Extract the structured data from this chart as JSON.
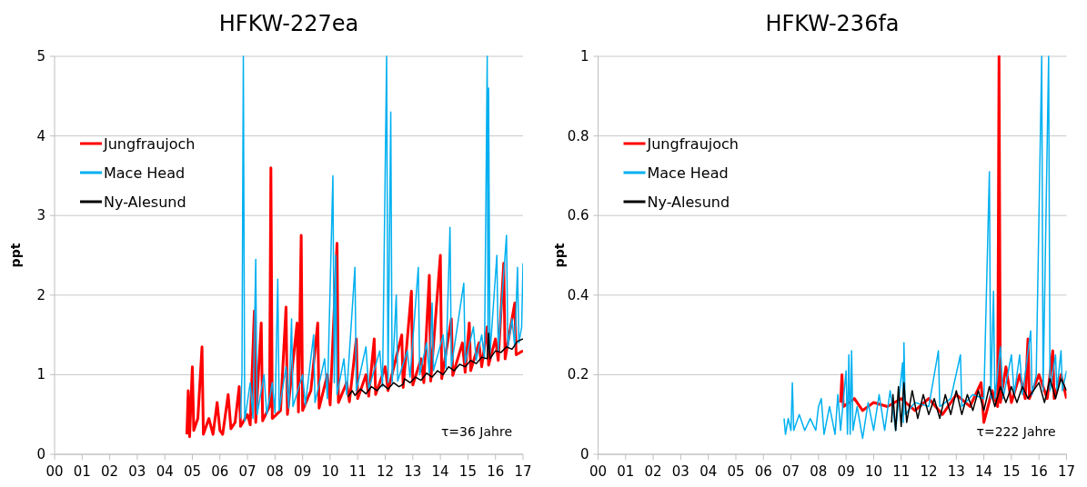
{
  "chart_data": [
    {
      "type": "line",
      "title": "HFKW-227ea",
      "ylabel": "ppt",
      "xlim": [
        0,
        17
      ],
      "xticks": [
        {
          "value": 0,
          "label": "00"
        },
        {
          "value": 1,
          "label": "01"
        },
        {
          "value": 2,
          "label": "02"
        },
        {
          "value": 3,
          "label": "03"
        },
        {
          "value": 4,
          "label": "04"
        },
        {
          "value": 5,
          "label": "05"
        },
        {
          "value": 6,
          "label": "06"
        },
        {
          "value": 7,
          "label": "07"
        },
        {
          "value": 8,
          "label": "08"
        },
        {
          "value": 9,
          "label": "09"
        },
        {
          "value": 10,
          "label": "10"
        },
        {
          "value": 11,
          "label": "11"
        },
        {
          "value": 12,
          "label": "12"
        },
        {
          "value": 13,
          "label": "13"
        },
        {
          "value": 14,
          "label": "14"
        },
        {
          "value": 15,
          "label": "15"
        },
        {
          "value": 16,
          "label": "16"
        },
        {
          "value": 17,
          "label": "17"
        }
      ],
      "ylim": [
        0,
        5
      ],
      "yticks": [
        0,
        1,
        2,
        3,
        4,
        5
      ],
      "grid": "y",
      "legend": "top left",
      "annotations": [
        "τ=36 Jahre"
      ],
      "series": [
        {
          "name": "Jungfraujoch",
          "color": "#ff0000",
          "x": [
            4.8,
            4.85,
            4.9,
            5.0,
            5.05,
            5.2,
            5.35,
            5.4,
            5.6,
            5.75,
            5.9,
            6.0,
            6.1,
            6.3,
            6.4,
            6.55,
            6.7,
            6.75,
            7.0,
            7.1,
            7.25,
            7.3,
            7.5,
            7.55,
            7.8,
            7.85,
            7.9,
            8.2,
            8.4,
            8.45,
            8.8,
            8.85,
            8.95,
            9.0,
            9.3,
            9.55,
            9.6,
            9.9,
            10.0,
            10.25,
            10.3,
            10.6,
            10.7,
            10.95,
            11.0,
            11.3,
            11.4,
            11.6,
            11.65,
            12.0,
            12.1,
            12.6,
            12.65,
            12.95,
            13.0,
            13.3,
            13.4,
            13.6,
            13.65,
            14.0,
            14.05,
            14.4,
            14.45,
            14.8,
            14.9,
            15.05,
            15.1,
            15.4,
            15.5,
            15.7,
            15.75,
            16.0,
            16.1,
            16.3,
            16.35,
            16.7,
            16.75,
            17.0
          ],
          "values": [
            0.25,
            0.8,
            0.22,
            1.1,
            0.3,
            0.45,
            1.35,
            0.25,
            0.45,
            0.25,
            0.65,
            0.3,
            0.25,
            0.75,
            0.32,
            0.4,
            0.85,
            0.35,
            0.5,
            0.37,
            1.8,
            0.4,
            1.65,
            0.42,
            0.6,
            3.6,
            0.45,
            0.55,
            1.85,
            0.5,
            1.65,
            0.53,
            2.75,
            0.55,
            0.8,
            1.65,
            0.58,
            1.0,
            0.62,
            2.65,
            0.65,
            0.9,
            0.66,
            1.45,
            0.7,
            1.0,
            0.73,
            1.45,
            0.75,
            1.1,
            0.8,
            1.5,
            0.84,
            2.05,
            0.87,
            1.2,
            0.9,
            2.25,
            0.92,
            2.5,
            0.95,
            1.7,
            0.99,
            1.4,
            1.03,
            1.65,
            1.05,
            1.4,
            1.1,
            1.6,
            1.12,
            1.45,
            1.18,
            2.4,
            1.2,
            1.9,
            1.25,
            1.3
          ]
        },
        {
          "name": "Mace Head",
          "color": "#00b0f0",
          "x": [
            6.75,
            6.8,
            6.85,
            6.9,
            7.1,
            7.2,
            7.3,
            7.35,
            7.6,
            7.7,
            7.9,
            8.0,
            8.1,
            8.15,
            8.4,
            8.5,
            8.6,
            8.65,
            9.0,
            9.1,
            9.4,
            9.45,
            9.8,
            9.9,
            10.1,
            10.15,
            10.2,
            10.25,
            10.5,
            10.6,
            10.9,
            10.95,
            11.3,
            11.4,
            11.8,
            11.9,
            12.05,
            12.1,
            12.2,
            12.25,
            12.4,
            12.45,
            12.8,
            12.9,
            13.2,
            13.25,
            13.5,
            13.6,
            13.7,
            13.75,
            14.1,
            14.2,
            14.35,
            14.4,
            14.85,
            14.9,
            15.2,
            15.3,
            15.5,
            15.6,
            15.7,
            15.73,
            15.75,
            15.8,
            16.05,
            16.1,
            16.4,
            16.45,
            16.6,
            16.7,
            16.8,
            16.85,
            16.95,
            17.0
          ],
          "values": [
            0.45,
            1.0,
            5,
            0.42,
            0.9,
            0.45,
            2.45,
            0.5,
            1.0,
            0.5,
            0.9,
            0.52,
            2.2,
            0.55,
            1.1,
            0.58,
            1.7,
            0.6,
            1.0,
            0.62,
            1.5,
            0.65,
            1.2,
            0.7,
            3.5,
            0.9,
            2.5,
            0.75,
            1.2,
            0.75,
            2.35,
            0.8,
            1.35,
            0.82,
            1.3,
            0.85,
            5,
            0.9,
            4.3,
            0.9,
            2.0,
            0.92,
            1.3,
            0.97,
            2.35,
            1.0,
            1.4,
            1.02,
            1.9,
            1.05,
            1.5,
            1.08,
            2.85,
            1.1,
            2.15,
            1.15,
            1.6,
            1.18,
            1.5,
            1.2,
            5,
            1.3,
            4.6,
            1.25,
            2.5,
            1.3,
            2.75,
            1.35,
            1.7,
            1.35,
            2.35,
            1.4,
            1.6,
            2.4
          ]
        },
        {
          "name": "Ny-Alesund",
          "color": "#000000",
          "x": [
            10.65,
            10.8,
            10.9,
            11.1,
            11.3,
            11.5,
            11.7,
            11.9,
            12.1,
            12.3,
            12.5,
            12.65,
            12.7,
            12.9,
            13.1,
            13.3,
            13.5,
            13.7,
            13.9,
            14.1,
            14.3,
            14.5,
            14.7,
            14.9,
            15.1,
            15.3,
            15.5,
            15.7,
            15.75,
            15.8,
            16.0,
            16.2,
            16.4,
            16.6,
            16.8,
            17.0
          ],
          "values": [
            0.72,
            0.8,
            0.74,
            0.82,
            0.76,
            0.85,
            0.8,
            0.88,
            0.82,
            0.9,
            0.85,
            0.88,
            0.95,
            0.9,
            0.97,
            0.93,
            1.02,
            0.97,
            1.05,
            1.0,
            1.1,
            1.05,
            1.13,
            1.1,
            1.18,
            1.14,
            1.22,
            1.2,
            1.52,
            1.2,
            1.3,
            1.28,
            1.35,
            1.32,
            1.42,
            1.45
          ]
        }
      ]
    },
    {
      "type": "line",
      "title": "HFKW-236fa",
      "ylabel": "ppt",
      "xlim": [
        0,
        17
      ],
      "xticks": [
        {
          "value": 0,
          "label": "00"
        },
        {
          "value": 1,
          "label": "01"
        },
        {
          "value": 2,
          "label": "02"
        },
        {
          "value": 3,
          "label": "03"
        },
        {
          "value": 4,
          "label": "04"
        },
        {
          "value": 5,
          "label": "05"
        },
        {
          "value": 6,
          "label": "06"
        },
        {
          "value": 7,
          "label": "07"
        },
        {
          "value": 8,
          "label": "08"
        },
        {
          "value": 9,
          "label": "09"
        },
        {
          "value": 10,
          "label": "10"
        },
        {
          "value": 11,
          "label": "11"
        },
        {
          "value": 12,
          "label": "12"
        },
        {
          "value": 13,
          "label": "13"
        },
        {
          "value": 14,
          "label": "14"
        },
        {
          "value": 15,
          "label": "15"
        },
        {
          "value": 16,
          "label": "16"
        },
        {
          "value": 17,
          "label": "17"
        }
      ],
      "ylim": [
        0,
        1
      ],
      "yticks": [
        0,
        0.2,
        0.4,
        0.6,
        0.8,
        1
      ],
      "grid": "y",
      "legend": "top left",
      "annotations": [
        "τ=222 Jahre"
      ],
      "series": [
        {
          "name": "Jungfraujoch",
          "color": "#ff0000",
          "x": [
            8.8,
            8.85,
            8.9,
            9.3,
            9.6,
            10.0,
            10.5,
            11.0,
            11.5,
            12.0,
            12.5,
            13.0,
            13.5,
            13.9,
            14.0,
            14.3,
            14.5,
            14.55,
            14.6,
            14.8,
            15.0,
            15.3,
            15.5,
            15.6,
            15.65,
            16.0,
            16.3,
            16.5,
            16.55,
            16.8,
            17.0
          ],
          "values": [
            0.13,
            0.2,
            0.12,
            0.14,
            0.11,
            0.13,
            0.12,
            0.14,
            0.11,
            0.14,
            0.1,
            0.15,
            0.12,
            0.18,
            0.08,
            0.16,
            0.12,
            1,
            0.13,
            0.22,
            0.13,
            0.2,
            0.14,
            0.29,
            0.14,
            0.2,
            0.14,
            0.26,
            0.14,
            0.2,
            0.14
          ]
        },
        {
          "name": "Mace Head",
          "color": "#00b0f0",
          "x": [
            6.75,
            6.8,
            6.9,
            7.0,
            7.05,
            7.1,
            7.3,
            7.5,
            7.7,
            7.9,
            8.0,
            8.1,
            8.2,
            8.4,
            8.6,
            8.7,
            8.8,
            9.0,
            9.05,
            9.1,
            9.15,
            9.2,
            9.25,
            9.4,
            9.6,
            9.8,
            10.0,
            10.2,
            10.4,
            10.6,
            10.8,
            11.05,
            11.08,
            11.1,
            11.15,
            11.5,
            12.0,
            12.35,
            12.4,
            12.8,
            13.15,
            13.2,
            13.6,
            14.0,
            14.2,
            14.25,
            14.35,
            14.4,
            14.6,
            14.7,
            15.0,
            15.1,
            15.3,
            15.4,
            15.7,
            15.75,
            15.9,
            16.1,
            16.15,
            16.35,
            16.4,
            16.6,
            16.65,
            16.8,
            16.85,
            17.0
          ],
          "values": [
            0.09,
            0.05,
            0.09,
            0.06,
            0.18,
            0.06,
            0.1,
            0.06,
            0.09,
            0.06,
            0.12,
            0.14,
            0.05,
            0.12,
            0.05,
            0.15,
            0.06,
            0.21,
            0.05,
            0.25,
            0.05,
            0.26,
            0.06,
            0.12,
            0.04,
            0.13,
            0.06,
            0.15,
            0.06,
            0.16,
            0.06,
            0.23,
            0.08,
            0.28,
            0.1,
            0.13,
            0.12,
            0.26,
            0.12,
            0.14,
            0.25,
            0.12,
            0.15,
            0.14,
            0.71,
            0.14,
            0.41,
            0.14,
            0.27,
            0.14,
            0.25,
            0.15,
            0.25,
            0.15,
            0.31,
            0.15,
            0.2,
            1,
            0.16,
            1,
            0.16,
            0.25,
            0.16,
            0.26,
            0.16,
            0.21
          ]
        },
        {
          "name": "Ny-Alesund",
          "color": "#000000",
          "x": [
            10.65,
            10.7,
            10.8,
            10.9,
            11.0,
            11.1,
            11.2,
            11.4,
            11.6,
            11.8,
            12.0,
            12.2,
            12.4,
            12.6,
            12.8,
            13.0,
            13.2,
            13.4,
            13.6,
            13.8,
            14.0,
            14.2,
            14.4,
            14.6,
            14.8,
            15.0,
            15.2,
            15.4,
            15.6,
            16.0,
            16.2,
            16.4,
            16.6,
            16.8,
            17.0
          ],
          "values": [
            0.08,
            0.15,
            0.06,
            0.17,
            0.07,
            0.18,
            0.08,
            0.16,
            0.09,
            0.15,
            0.1,
            0.14,
            0.09,
            0.15,
            0.1,
            0.16,
            0.1,
            0.15,
            0.11,
            0.16,
            0.11,
            0.17,
            0.12,
            0.17,
            0.13,
            0.17,
            0.13,
            0.17,
            0.14,
            0.18,
            0.13,
            0.19,
            0.14,
            0.19,
            0.16
          ]
        }
      ]
    }
  ]
}
